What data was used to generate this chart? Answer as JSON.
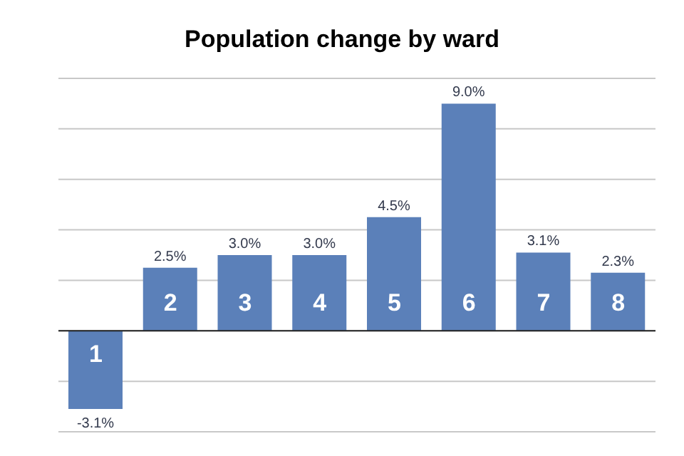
{
  "chart_data": {
    "type": "bar",
    "title": "Population change by ward",
    "categories": [
      "1",
      "2",
      "3",
      "4",
      "5",
      "6",
      "7",
      "8"
    ],
    "values": [
      -3.1,
      2.5,
      3.0,
      3.0,
      4.5,
      9.0,
      3.1,
      2.3
    ],
    "value_labels": [
      "-3.1%",
      "2.5%",
      "3.0%",
      "3.0%",
      "4.5%",
      "9.0%",
      "3.1%",
      "2.3%"
    ],
    "color": "#5b80b9",
    "grid": true,
    "tick_labels": "x",
    "legend": false
  }
}
